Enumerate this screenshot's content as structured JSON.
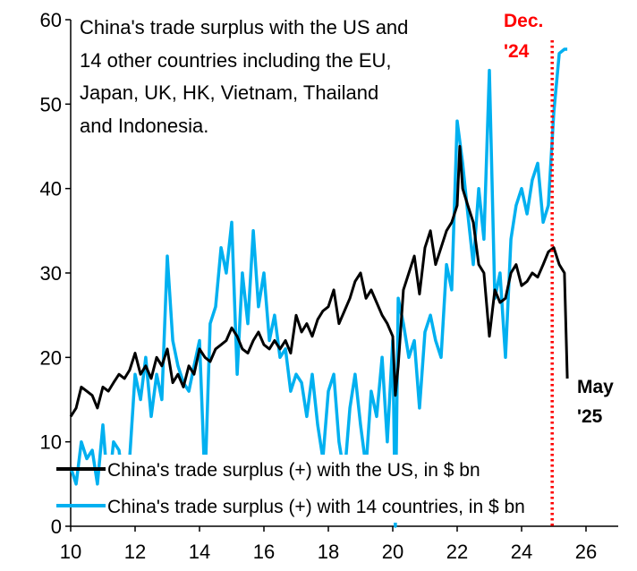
{
  "chart_data": {
    "type": "line",
    "title_lines": [
      "China's trade surplus with the US and",
      "14  other countries including the EU,",
      "Japan, UK, HK, Vietnam, Thailand",
      "and Indonesia."
    ],
    "xlim": [
      2010,
      2027
    ],
    "ylim": [
      0,
      60
    ],
    "xticks": [
      2010,
      2012,
      2014,
      2016,
      2018,
      2020,
      2022,
      2024,
      2026
    ],
    "xtick_labels": [
      "10",
      "12",
      "14",
      "16",
      "18",
      "20",
      "22",
      "24",
      "26"
    ],
    "yticks": [
      0,
      10,
      20,
      30,
      40,
      50,
      60
    ],
    "ytick_labels": [
      "0",
      "10",
      "20",
      "30",
      "40",
      "50",
      "60"
    ],
    "grid": false,
    "legend_position": "bottom-center",
    "series": [
      {
        "name": "China's trade surplus (+) with the US, in $ bn",
        "color": "#000000",
        "x": [
          2010.0,
          2010.17,
          2010.33,
          2010.5,
          2010.67,
          2010.83,
          2011.0,
          2011.17,
          2011.33,
          2011.5,
          2011.67,
          2011.83,
          2012.0,
          2012.17,
          2012.33,
          2012.5,
          2012.67,
          2012.83,
          2013.0,
          2013.17,
          2013.33,
          2013.5,
          2013.67,
          2013.83,
          2014.0,
          2014.17,
          2014.33,
          2014.5,
          2014.67,
          2014.83,
          2015.0,
          2015.17,
          2015.33,
          2015.5,
          2015.67,
          2015.83,
          2016.0,
          2016.17,
          2016.33,
          2016.5,
          2016.67,
          2016.83,
          2017.0,
          2017.17,
          2017.33,
          2017.5,
          2017.67,
          2017.83,
          2018.0,
          2018.17,
          2018.33,
          2018.5,
          2018.67,
          2018.83,
          2019.0,
          2019.17,
          2019.33,
          2019.5,
          2019.67,
          2019.83,
          2020.0,
          2020.08,
          2020.17,
          2020.33,
          2020.5,
          2020.67,
          2020.83,
          2021.0,
          2021.17,
          2021.33,
          2021.5,
          2021.67,
          2021.83,
          2022.0,
          2022.08,
          2022.17,
          2022.33,
          2022.5,
          2022.67,
          2022.83,
          2023.0,
          2023.17,
          2023.33,
          2023.5,
          2023.67,
          2023.83,
          2024.0,
          2024.17,
          2024.33,
          2024.5,
          2024.67,
          2024.83,
          2025.0,
          2025.17,
          2025.33,
          2025.42
        ],
        "y": [
          13,
          14,
          16.5,
          16,
          15.5,
          14,
          16.5,
          16,
          17,
          18,
          17.5,
          18.5,
          20.5,
          18,
          19,
          17.5,
          20,
          19,
          21,
          17,
          18,
          16.5,
          19,
          18,
          21,
          20,
          19.5,
          21,
          21.5,
          22,
          23.5,
          22.5,
          21,
          20.5,
          22,
          23,
          21.5,
          21,
          22,
          21,
          22,
          20.5,
          25,
          23,
          24,
          22.5,
          24.5,
          25.5,
          26,
          28,
          24,
          25.5,
          27,
          29,
          30,
          27,
          28,
          26.5,
          25,
          24,
          22.5,
          15.5,
          19,
          28,
          30,
          32,
          27.5,
          33,
          35,
          31,
          33,
          35,
          36,
          38,
          45,
          40,
          38,
          36,
          31,
          30,
          22.5,
          28,
          26.5,
          27,
          30,
          31,
          28.5,
          29,
          30,
          29.5,
          31,
          32.5,
          33,
          31,
          30,
          17.5
        ]
      },
      {
        "name": "China's trade surplus (+) with 14 countries, in $ bn",
        "color": "#00b0f0",
        "x": [
          2010.0,
          2010.17,
          2010.33,
          2010.5,
          2010.67,
          2010.83,
          2011.0,
          2011.17,
          2011.33,
          2011.5,
          2011.67,
          2011.83,
          2012.0,
          2012.17,
          2012.33,
          2012.5,
          2012.67,
          2012.83,
          2013.0,
          2013.17,
          2013.33,
          2013.5,
          2013.67,
          2013.83,
          2014.0,
          2014.17,
          2014.33,
          2014.5,
          2014.67,
          2014.83,
          2015.0,
          2015.17,
          2015.33,
          2015.5,
          2015.67,
          2015.83,
          2016.0,
          2016.17,
          2016.33,
          2016.5,
          2016.67,
          2016.83,
          2017.0,
          2017.17,
          2017.33,
          2017.5,
          2017.67,
          2017.83,
          2018.0,
          2018.17,
          2018.33,
          2018.5,
          2018.67,
          2018.83,
          2019.0,
          2019.17,
          2019.33,
          2019.5,
          2019.67,
          2019.83,
          2020.0,
          2020.08,
          2020.17,
          2020.33,
          2020.5,
          2020.67,
          2020.83,
          2021.0,
          2021.17,
          2021.33,
          2021.5,
          2021.67,
          2021.83,
          2022.0,
          2022.17,
          2022.33,
          2022.5,
          2022.67,
          2022.83,
          2023.0,
          2023.17,
          2023.33,
          2023.5,
          2023.67,
          2023.83,
          2024.0,
          2024.17,
          2024.33,
          2024.5,
          2024.67,
          2024.83,
          2025.0,
          2025.17,
          2025.33,
          2025.42
        ],
        "y": [
          7,
          5,
          10,
          8,
          9,
          5,
          12,
          4,
          10,
          9,
          4,
          8,
          18,
          15,
          20,
          13,
          18,
          15,
          32,
          22,
          19,
          17,
          16,
          19,
          22,
          5,
          24,
          26,
          33,
          30,
          36,
          18,
          30,
          24,
          35,
          26,
          30,
          22,
          25,
          20,
          21,
          16,
          18,
          17,
          13,
          18,
          12,
          8,
          16,
          18,
          10,
          6,
          14,
          18,
          12,
          7,
          16,
          13,
          20,
          10,
          22,
          0,
          27,
          24,
          20,
          22,
          14,
          23,
          25,
          22,
          20,
          31,
          28,
          48,
          43,
          37,
          31,
          40,
          34,
          54,
          27,
          30,
          20,
          34,
          38,
          40,
          37,
          41,
          43,
          36,
          38,
          49,
          56,
          56.5,
          56.5
        ]
      }
    ],
    "annotations": {
      "dec_label": "Dec.",
      "dec_year": "'24",
      "dec_x": 2024.95,
      "may_label": "May",
      "may_year": "'25"
    }
  }
}
